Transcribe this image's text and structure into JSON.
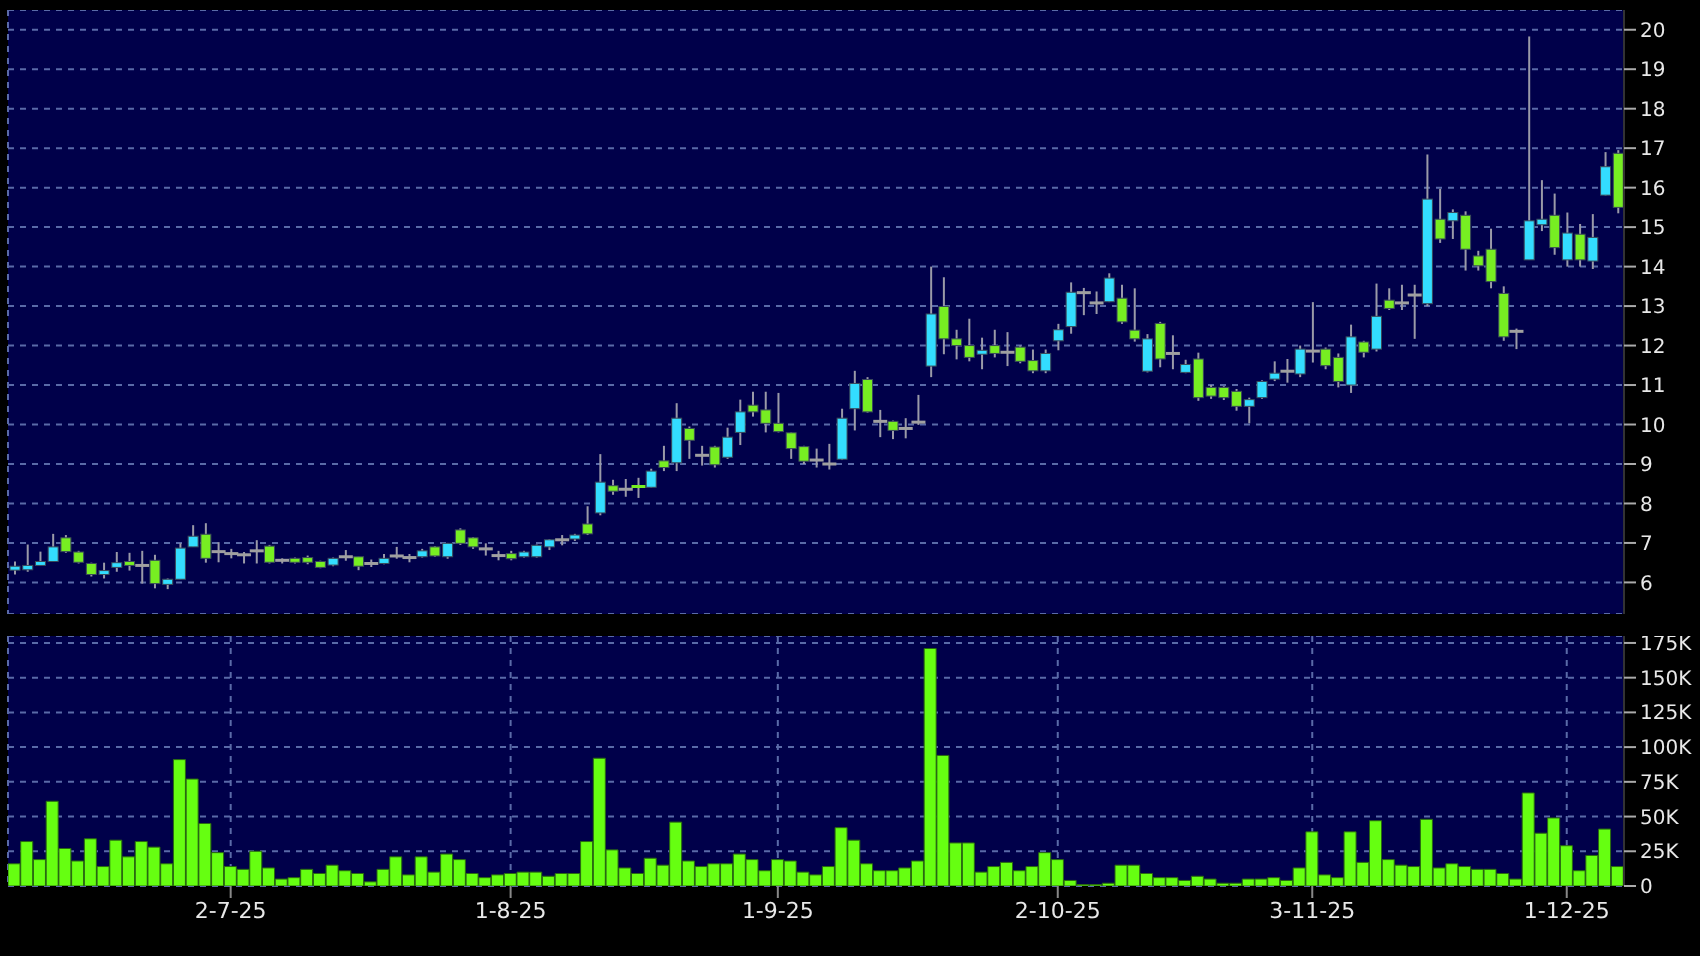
{
  "chart_data": [
    {
      "type": "candlestick",
      "categories": [
        null,
        null,
        null,
        null,
        null,
        null,
        null,
        null,
        null,
        null,
        null,
        null,
        null,
        null,
        null,
        null,
        null,
        null,
        null,
        null,
        null,
        null,
        null,
        null,
        null,
        null,
        null,
        null,
        null,
        null,
        null,
        null,
        null,
        null,
        null,
        null,
        null,
        null,
        null,
        null,
        null,
        null,
        null,
        null,
        null,
        null,
        null,
        null,
        null,
        null,
        null,
        null,
        null,
        null,
        null,
        null,
        null,
        null,
        null,
        null,
        null,
        null,
        null,
        null,
        null,
        null,
        null,
        null,
        null,
        null,
        null,
        null,
        null,
        null,
        null,
        null,
        null,
        null,
        null,
        null,
        null,
        null,
        null,
        null,
        null,
        null,
        null,
        null,
        null,
        null,
        null,
        null,
        null,
        null,
        null,
        null,
        null,
        null,
        null,
        null,
        null,
        null,
        null,
        null,
        null,
        null,
        null,
        null,
        null,
        null,
        null,
        null,
        null,
        null,
        null,
        null,
        null,
        null,
        null,
        null,
        null,
        null,
        null,
        null,
        null,
        null,
        null
      ],
      "ohlc": [
        [
          6.31,
          6.53,
          6.2,
          6.41
        ],
        [
          6.32,
          6.96,
          6.27,
          6.43
        ],
        [
          6.43,
          6.78,
          6.43,
          6.53
        ],
        [
          6.53,
          7.23,
          6.53,
          6.9
        ],
        [
          7.13,
          7.2,
          6.75,
          6.78
        ],
        [
          6.77,
          6.8,
          6.48,
          6.51
        ],
        [
          6.48,
          6.5,
          6.15,
          6.2
        ],
        [
          6.2,
          6.5,
          6.1,
          6.3
        ],
        [
          6.38,
          6.77,
          6.27,
          6.5
        ],
        [
          6.53,
          6.75,
          6.3,
          6.43
        ],
        [
          6.43,
          6.8,
          5.97,
          6.43
        ],
        [
          6.56,
          6.7,
          5.85,
          5.97
        ],
        [
          5.95,
          6.1,
          5.83,
          6.08
        ],
        [
          6.08,
          6.99,
          6.08,
          6.87
        ],
        [
          6.9,
          7.45,
          6.9,
          7.17
        ],
        [
          7.22,
          7.5,
          6.5,
          6.61
        ],
        [
          6.78,
          7.02,
          6.51,
          6.78
        ],
        [
          6.73,
          6.85,
          6.61,
          6.73
        ],
        [
          6.7,
          6.77,
          6.48,
          6.7
        ],
        [
          6.8,
          7.07,
          6.48,
          6.8
        ],
        [
          6.92,
          6.95,
          6.48,
          6.51
        ],
        [
          6.56,
          6.61,
          6.48,
          6.56
        ],
        [
          6.61,
          6.63,
          6.48,
          6.51
        ],
        [
          6.63,
          6.68,
          6.46,
          6.51
        ],
        [
          6.53,
          6.55,
          6.36,
          6.38
        ],
        [
          6.44,
          6.63,
          6.41,
          6.61
        ],
        [
          6.65,
          6.82,
          6.55,
          6.65
        ],
        [
          6.65,
          6.65,
          6.31,
          6.41
        ],
        [
          6.48,
          6.58,
          6.39,
          6.48
        ],
        [
          6.48,
          6.72,
          6.46,
          6.61
        ],
        [
          6.67,
          6.9,
          6.6,
          6.67
        ],
        [
          6.63,
          6.72,
          6.51,
          6.63
        ],
        [
          6.65,
          6.85,
          6.63,
          6.8
        ],
        [
          6.9,
          6.92,
          6.65,
          6.67
        ],
        [
          6.65,
          7.0,
          6.6,
          6.99
        ],
        [
          7.33,
          7.37,
          6.95,
          6.99
        ],
        [
          7.13,
          7.15,
          6.85,
          6.9
        ],
        [
          6.85,
          6.99,
          6.68,
          6.85
        ],
        [
          6.68,
          6.8,
          6.56,
          6.68
        ],
        [
          6.73,
          6.8,
          6.56,
          6.6
        ],
        [
          6.65,
          6.8,
          6.63,
          6.77
        ],
        [
          6.65,
          6.96,
          6.63,
          6.94
        ],
        [
          6.9,
          7.1,
          6.82,
          7.08
        ],
        [
          7.08,
          7.2,
          6.94,
          7.08
        ],
        [
          7.1,
          7.23,
          7.05,
          7.2
        ],
        [
          7.48,
          7.93,
          7.2,
          7.23
        ],
        [
          7.76,
          9.25,
          7.7,
          8.54
        ],
        [
          8.45,
          8.6,
          8.22,
          8.31
        ],
        [
          8.36,
          8.62,
          8.17,
          8.36
        ],
        [
          8.43,
          8.65,
          8.14,
          8.4
        ],
        [
          8.41,
          8.88,
          8.4,
          8.82
        ],
        [
          9.08,
          9.46,
          8.82,
          8.91
        ],
        [
          9.03,
          10.54,
          8.82,
          10.16
        ],
        [
          9.9,
          9.95,
          9.13,
          9.6
        ],
        [
          9.22,
          9.46,
          8.96,
          9.22
        ],
        [
          9.43,
          9.46,
          8.91,
          8.98
        ],
        [
          9.17,
          9.92,
          9.13,
          9.68
        ],
        [
          9.8,
          10.63,
          9.48,
          10.32
        ],
        [
          10.49,
          10.83,
          10.2,
          10.32
        ],
        [
          10.37,
          10.83,
          9.8,
          10.03
        ],
        [
          10.03,
          10.8,
          9.8,
          9.82
        ],
        [
          9.79,
          9.8,
          9.13,
          9.39
        ],
        [
          9.44,
          9.46,
          9.0,
          9.07
        ],
        [
          9.1,
          9.39,
          8.91,
          9.1
        ],
        [
          9.0,
          9.51,
          8.86,
          9.0
        ],
        [
          9.12,
          10.4,
          9.1,
          10.16
        ],
        [
          10.4,
          11.36,
          9.85,
          11.04
        ],
        [
          11.14,
          11.2,
          10.3,
          10.32
        ],
        [
          10.08,
          10.37,
          9.68,
          10.08
        ],
        [
          10.08,
          10.1,
          9.63,
          9.85
        ],
        [
          9.9,
          10.16,
          9.65,
          9.9
        ],
        [
          10.06,
          10.75,
          9.99,
          10.06
        ],
        [
          11.48,
          14.0,
          11.2,
          12.8
        ],
        [
          12.99,
          13.73,
          11.78,
          12.17
        ],
        [
          12.17,
          12.4,
          11.65,
          12.0
        ],
        [
          12.0,
          12.68,
          11.6,
          11.7
        ],
        [
          11.78,
          12.2,
          11.4,
          11.88
        ],
        [
          12.0,
          12.4,
          11.7,
          11.8
        ],
        [
          11.83,
          12.34,
          11.48,
          11.83
        ],
        [
          11.96,
          12.0,
          11.55,
          11.6
        ],
        [
          11.62,
          11.9,
          11.3,
          11.36
        ],
        [
          11.36,
          11.9,
          11.3,
          11.8
        ],
        [
          12.12,
          12.55,
          11.88,
          12.4
        ],
        [
          12.48,
          13.6,
          12.3,
          13.35
        ],
        [
          13.34,
          13.46,
          12.77,
          13.34
        ],
        [
          13.08,
          13.37,
          12.8,
          13.08
        ],
        [
          13.11,
          13.83,
          13.1,
          13.71
        ],
        [
          13.2,
          13.54,
          12.55,
          12.6
        ],
        [
          12.39,
          13.45,
          12.1,
          12.17
        ],
        [
          11.35,
          12.29,
          11.32,
          12.17
        ],
        [
          12.56,
          12.6,
          11.45,
          11.66
        ],
        [
          11.8,
          12.26,
          11.4,
          11.8
        ],
        [
          11.32,
          11.64,
          11.3,
          11.52
        ],
        [
          11.66,
          11.82,
          10.6,
          10.68
        ],
        [
          10.94,
          11.0,
          10.65,
          10.72
        ],
        [
          10.94,
          10.97,
          10.62,
          10.68
        ],
        [
          10.84,
          10.9,
          10.35,
          10.46
        ],
        [
          10.46,
          10.68,
          10.03,
          10.63
        ],
        [
          10.68,
          11.12,
          10.65,
          11.09
        ],
        [
          11.15,
          11.6,
          11.1,
          11.3
        ],
        [
          11.35,
          11.66,
          11.06,
          11.35
        ],
        [
          11.28,
          12.0,
          11.2,
          11.91
        ],
        [
          11.86,
          13.1,
          11.57,
          11.86
        ],
        [
          11.91,
          11.95,
          11.4,
          11.49
        ],
        [
          11.7,
          11.8,
          10.94,
          11.09
        ],
        [
          11.0,
          12.53,
          10.8,
          12.22
        ],
        [
          12.09,
          12.12,
          11.7,
          11.83
        ],
        [
          11.91,
          13.57,
          11.85,
          12.74
        ],
        [
          13.15,
          13.45,
          12.9,
          12.94
        ],
        [
          13.08,
          13.54,
          12.9,
          13.08
        ],
        [
          13.28,
          13.54,
          12.17,
          13.28
        ],
        [
          13.06,
          16.84,
          13.0,
          15.71
        ],
        [
          15.2,
          15.97,
          14.6,
          14.7
        ],
        [
          15.16,
          15.45,
          14.7,
          15.37
        ],
        [
          15.3,
          15.4,
          13.9,
          14.44
        ],
        [
          14.27,
          14.4,
          13.9,
          14.02
        ],
        [
          14.44,
          14.96,
          13.45,
          13.62
        ],
        [
          13.32,
          13.5,
          12.12,
          12.22
        ],
        [
          12.36,
          12.43,
          11.91,
          12.36
        ],
        [
          14.17,
          19.83,
          14.17,
          15.16
        ],
        [
          15.06,
          16.19,
          14.9,
          15.2
        ],
        [
          15.3,
          15.85,
          14.3,
          14.48
        ],
        [
          14.17,
          15.37,
          14.0,
          14.85
        ],
        [
          14.82,
          15.08,
          14.0,
          14.17
        ],
        [
          14.14,
          15.33,
          13.94,
          14.74
        ],
        [
          15.81,
          16.9,
          15.8,
          16.53
        ],
        [
          16.87,
          16.95,
          15.35,
          15.5
        ]
      ],
      "colors": [
        "#33ddff",
        "#33ddff",
        "#33ddff",
        "#33ddff",
        "#77ee22",
        "#77ee22",
        "#77ee22",
        "#33ddff",
        "#33ddff",
        "#77ee22",
        "#a0a0a0",
        "#77ee22",
        "#33ddff",
        "#33ddff",
        "#33ddff",
        "#77ee22",
        "#a0a0a0",
        "#a0a0a0",
        "#a0a0a0",
        "#a0a0a0",
        "#77ee22",
        "#a0a0a0",
        "#77ee22",
        "#77ee22",
        "#77ee22",
        "#33ddff",
        "#a0a0a0",
        "#77ee22",
        "#a0a0a0",
        "#33ddff",
        "#a0a0a0",
        "#a0a0a0",
        "#33ddff",
        "#77ee22",
        "#33ddff",
        "#77ee22",
        "#77ee22",
        "#a0a0a0",
        "#a0a0a0",
        "#77ee22",
        "#33ddff",
        "#33ddff",
        "#33ddff",
        "#a0a0a0",
        "#33ddff",
        "#77ee22",
        "#33ddff",
        "#77ee22",
        "#a0a0a0",
        "#77ee22",
        "#33ddff",
        "#77ee22",
        "#33ddff",
        "#77ee22",
        "#a0a0a0",
        "#77ee22",
        "#33ddff",
        "#33ddff",
        "#77ee22",
        "#77ee22",
        "#77ee22",
        "#77ee22",
        "#77ee22",
        "#a0a0a0",
        "#a0a0a0",
        "#33ddff",
        "#33ddff",
        "#77ee22",
        "#a0a0a0",
        "#77ee22",
        "#a0a0a0",
        "#a0a0a0",
        "#33ddff",
        "#77ee22",
        "#77ee22",
        "#77ee22",
        "#33ddff",
        "#77ee22",
        "#a0a0a0",
        "#77ee22",
        "#77ee22",
        "#33ddff",
        "#33ddff",
        "#33ddff",
        "#a0a0a0",
        "#a0a0a0",
        "#33ddff",
        "#77ee22",
        "#77ee22",
        "#33ddff",
        "#77ee22",
        "#a0a0a0",
        "#33ddff",
        "#77ee22",
        "#77ee22",
        "#77ee22",
        "#77ee22",
        "#33ddff",
        "#33ddff",
        "#33ddff",
        "#a0a0a0",
        "#33ddff",
        "#a0a0a0",
        "#77ee22",
        "#77ee22",
        "#33ddff",
        "#77ee22",
        "#33ddff",
        "#77ee22",
        "#a0a0a0",
        "#a0a0a0",
        "#33ddff",
        "#77ee22",
        "#33ddff",
        "#77ee22",
        "#77ee22",
        "#77ee22",
        "#77ee22",
        "#a0a0a0",
        "#33ddff",
        "#33ddff",
        "#77ee22",
        "#33ddff",
        "#77ee22",
        "#33ddff",
        "#33ddff",
        "#77ee22"
      ],
      "ylim": [
        5.2,
        20.5
      ],
      "yticks": [
        6,
        7,
        8,
        9,
        10,
        11,
        12,
        13,
        14,
        15,
        16,
        17,
        18,
        19,
        20
      ],
      "grid": true,
      "tick_labels": "y"
    },
    {
      "type": "bar",
      "categories": [
        null,
        null,
        null,
        null,
        null,
        null,
        null,
        null,
        null,
        null,
        null,
        null,
        null,
        null,
        null,
        null,
        null,
        "2-7-25",
        null,
        null,
        null,
        null,
        null,
        null,
        null,
        null,
        null,
        null,
        null,
        null,
        null,
        null,
        null,
        null,
        null,
        null,
        null,
        null,
        null,
        "1-8-25",
        null,
        null,
        null,
        null,
        null,
        null,
        null,
        null,
        null,
        null,
        null,
        null,
        null,
        null,
        null,
        null,
        null,
        null,
        null,
        null,
        "1-9-25",
        null,
        null,
        null,
        null,
        null,
        null,
        null,
        null,
        null,
        null,
        null,
        null,
        null,
        null,
        null,
        null,
        null,
        null,
        null,
        null,
        null,
        "2-10-25",
        null,
        null,
        null,
        null,
        null,
        null,
        null,
        null,
        null,
        null,
        null,
        null,
        null,
        null,
        null,
        null,
        null,
        null,
        null,
        "3-11-25",
        null,
        null,
        null,
        null,
        null,
        null,
        null,
        null,
        null,
        null,
        null,
        null,
        null,
        null,
        null,
        null,
        null,
        null,
        null,
        "1-12-25",
        null,
        null,
        null,
        null
      ],
      "values": [
        16000,
        32000,
        19000,
        61000,
        27000,
        18000,
        34000,
        14000,
        33000,
        21000,
        32000,
        28000,
        16000,
        91000,
        77000,
        45000,
        24000,
        14000,
        12000,
        25000,
        13000,
        5000,
        6000,
        12000,
        9000,
        15000,
        11000,
        9000,
        3000,
        12000,
        21000,
        8000,
        21000,
        10000,
        23000,
        19000,
        9000,
        6000,
        8000,
        9000,
        10000,
        10000,
        7000,
        9000,
        9000,
        32000,
        92000,
        26000,
        13000,
        9000,
        20000,
        15000,
        46000,
        18000,
        14000,
        16000,
        16000,
        23000,
        19000,
        11000,
        19000,
        18000,
        10000,
        8000,
        14000,
        42000,
        33000,
        16000,
        11000,
        11000,
        13000,
        18000,
        171000,
        94000,
        31000,
        31000,
        10000,
        14000,
        17000,
        11000,
        14000,
        24000,
        19000,
        4000,
        1000,
        1000,
        2000,
        15000,
        15000,
        9000,
        6000,
        6000,
        4000,
        7000,
        5000,
        2000,
        2000,
        5000,
        5000,
        6000,
        4000,
        13000,
        39000,
        8000,
        6000,
        39000,
        17000,
        47000,
        19000,
        15000,
        14000,
        48000,
        13000,
        16000,
        14000,
        12000,
        12000,
        9000,
        5000,
        67000,
        38000,
        49000,
        29000,
        11000,
        22000,
        41000,
        14000
      ],
      "color": "#66ff11",
      "ylim": [
        0,
        180000
      ],
      "yticks": [
        0,
        {
          "value": 25000,
          "label": "25K"
        },
        {
          "value": 50000,
          "label": "50K"
        },
        {
          "value": 75000,
          "label": "75K"
        },
        {
          "value": 100000,
          "label": "100K"
        },
        {
          "value": 125000,
          "label": "125K"
        },
        {
          "value": 150000,
          "label": "150K"
        },
        {
          "value": 175000,
          "label": "175K"
        }
      ],
      "grid": true
    }
  ]
}
